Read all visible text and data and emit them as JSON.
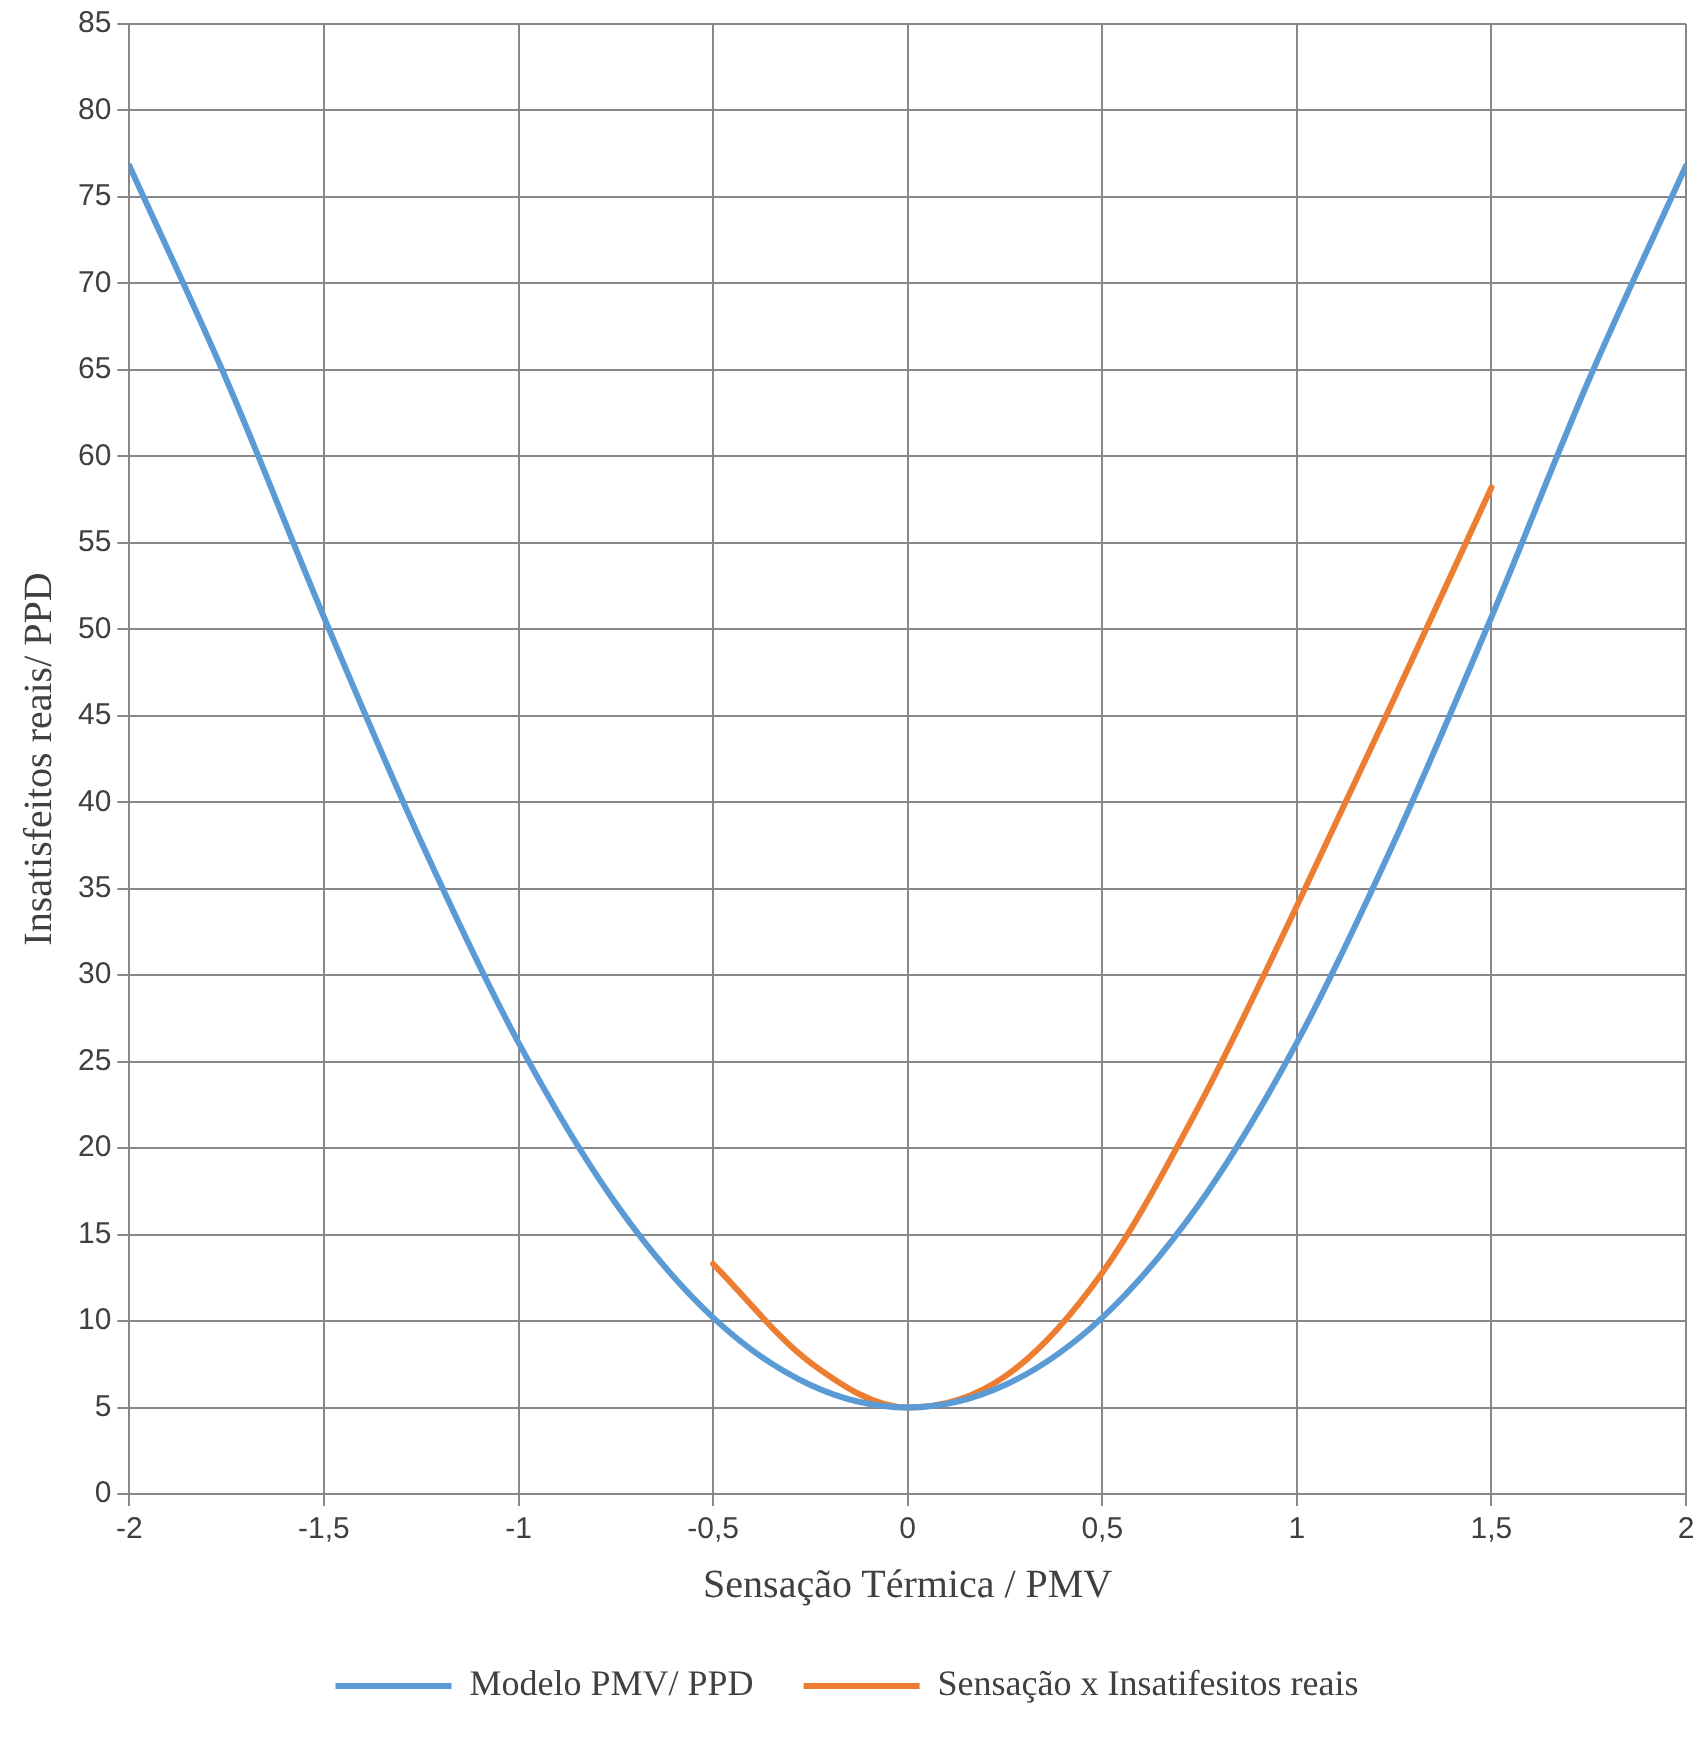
{
  "chart_data": {
    "type": "line",
    "xlabel": "Sensação Térmica / PMV",
    "ylabel": "Insatisfeitos reais/ PPD",
    "series": [
      {
        "name": "Modelo PMV/ PPD",
        "color": "#5b9bd5",
        "x": [
          -2,
          -1.75,
          -1.5,
          -1.25,
          -1,
          -0.75,
          -0.5,
          -0.25,
          0,
          0.25,
          0.5,
          0.75,
          1,
          1.25,
          1.5,
          1.75,
          2
        ],
        "values": [
          76.8,
          64.4,
          50.7,
          37.7,
          26.1,
          16.8,
          10.2,
          6.3,
          5,
          6.3,
          10.2,
          16.8,
          26.1,
          37.7,
          50.7,
          64.4,
          76.8
        ]
      },
      {
        "name": "Sensação x Insatifesitos reais",
        "color": "#ed7d31",
        "x": [
          -0.5,
          -0.25,
          0,
          0.25,
          0.5,
          0.75,
          1,
          1.25,
          1.5
        ],
        "values": [
          13.3,
          7.6,
          5,
          6.8,
          12.8,
          22.5,
          34,
          46,
          58.2
        ]
      }
    ],
    "xlim": [
      -2,
      2
    ],
    "xticks": [
      -2,
      {
        "value": -1.5,
        "label": "-1,5"
      },
      -1,
      {
        "value": -0.5,
        "label": "-0,5"
      },
      0,
      {
        "value": 0.5,
        "label": "0,5"
      },
      1,
      {
        "value": 1.5,
        "label": "1,5"
      },
      2
    ],
    "ylim": [
      0,
      85
    ],
    "yticks": [
      0,
      5,
      10,
      15,
      20,
      25,
      30,
      35,
      40,
      45,
      50,
      55,
      60,
      65,
      70,
      75,
      80,
      85
    ],
    "grid": true,
    "legend": "bottom",
    "marker": "none",
    "line_style": "solid"
  }
}
